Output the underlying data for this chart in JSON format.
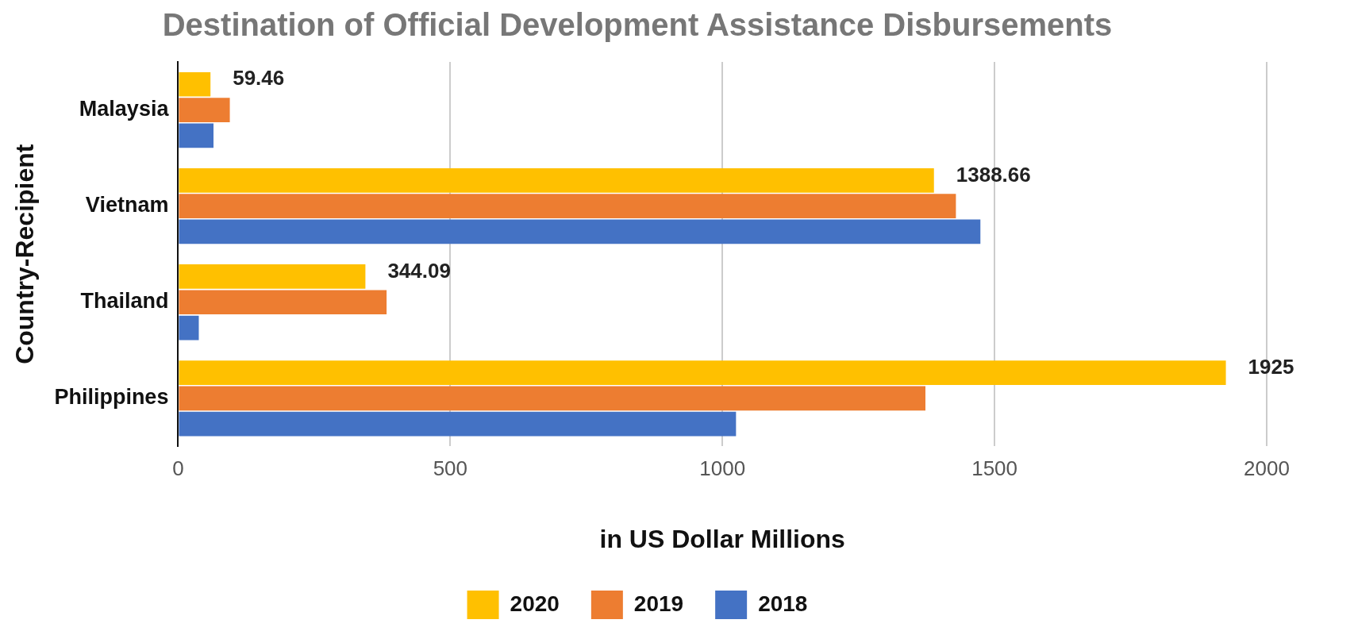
{
  "chart_data": {
    "type": "bar",
    "orientation": "horizontal",
    "title": "Destination of Official Development Assistance Disbursements",
    "xlabel": "in US Dollar Millions",
    "ylabel": "Country-Recipient",
    "categories": [
      "Malaysia",
      "Vietnam",
      "Thailand",
      "Philippines"
    ],
    "series": [
      {
        "name": "2020",
        "color": "#ffc000",
        "values": [
          59.46,
          1388.66,
          344.09,
          1925
        ],
        "value_labels": [
          "59.46",
          "1388.66",
          "344.09",
          "1925"
        ]
      },
      {
        "name": "2019",
        "color": "#ed7d31",
        "values": [
          95,
          1429,
          383,
          1373
        ]
      },
      {
        "name": "2018",
        "color": "#4472c4",
        "values": [
          65,
          1474,
          38,
          1025
        ]
      }
    ],
    "xlim": [
      0,
      2000
    ],
    "xticks": [
      0,
      500,
      1000,
      1500,
      2000
    ],
    "grid": "x",
    "legend": "bottom"
  }
}
